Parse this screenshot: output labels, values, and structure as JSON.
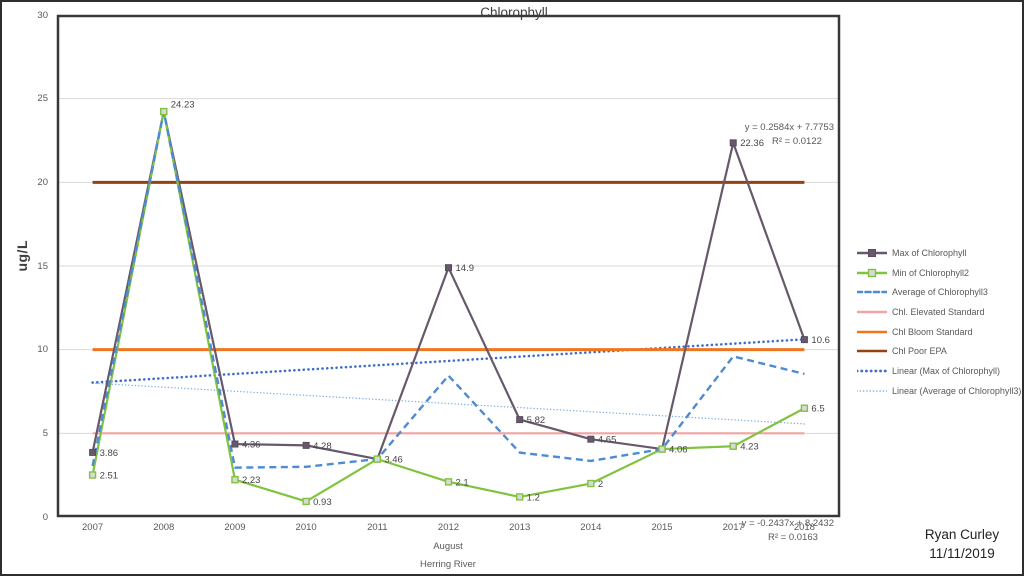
{
  "title": "Chlorophyll",
  "x_axis": {
    "period_label": "August",
    "location_label": "Herring River"
  },
  "annotations": {
    "trend_max": {
      "equation": "y = 0.2584x + 7.7753",
      "r2": "R² = 0.0122"
    },
    "trend_avg": {
      "equation": "y = -0.2437x + 8.2432",
      "r2": "R² = 0.0163"
    }
  },
  "author_block": {
    "name": "Ryan Curley",
    "date": "11/11/2019"
  },
  "chart_data": {
    "type": "line",
    "title": "Chlorophyll",
    "ylabel": "ug/L",
    "ylim": [
      0,
      30
    ],
    "yticks": [
      0,
      5,
      10,
      15,
      20,
      25,
      30
    ],
    "grid": true,
    "legend_position": "right",
    "categories": [
      "2007",
      "2008",
      "2009",
      "2010",
      "2011",
      "2012",
      "2013",
      "2014",
      "2015",
      "2017",
      "2018"
    ],
    "series": [
      {
        "name": "Max of Chlorophyll",
        "kind": "line",
        "style": "solid",
        "marker": "filled-square",
        "color": "#67596B",
        "values": [
          3.86,
          24.23,
          4.36,
          4.28,
          3.46,
          14.9,
          5.82,
          4.65,
          4.06,
          22.36,
          10.6
        ],
        "labels": [
          "3.86",
          null,
          "4.36",
          "4.28",
          "3.46",
          "14.9",
          "5.82",
          "4.65",
          "4.06",
          "22.36",
          "10.6"
        ]
      },
      {
        "name": "Min of Chlorophyll2",
        "kind": "line",
        "style": "solid",
        "marker": "open-square",
        "color": "#80C33E",
        "values": [
          2.51,
          24.23,
          2.23,
          0.93,
          3.46,
          2.1,
          1.2,
          2,
          4.06,
          4.23,
          6.5
        ],
        "labels": [
          "2.51",
          "24.23",
          "2.23",
          "0.93",
          null,
          "2.1",
          "1.2",
          "2",
          null,
          "4.23",
          "6.5"
        ]
      },
      {
        "name": "Average of Chlorophyll3",
        "kind": "line",
        "style": "dashed",
        "color": "#4E8BD3",
        "values": [
          3.05,
          24.23,
          2.95,
          3.0,
          3.46,
          8.45,
          3.85,
          3.35,
          4.06,
          9.6,
          8.55
        ]
      },
      {
        "name": "Chl. Elevated Standard",
        "kind": "constant",
        "style": "solid",
        "color": "#F2A4A0",
        "value": 5
      },
      {
        "name": "Chl Bloom Standard",
        "kind": "constant",
        "style": "solid",
        "color": "#EF7522",
        "value": 10
      },
      {
        "name": "Chl Poor EPA",
        "kind": "constant",
        "style": "solid",
        "color": "#964111",
        "value": 20
      },
      {
        "name": "Linear (Max of Chlorophyll)",
        "kind": "trend",
        "style": "dotted",
        "color": "#3B6DC9",
        "slope": 0.2584,
        "intercept": 7.7753,
        "r2": 0.0122
      },
      {
        "name": "Linear (Average of Chlorophyll3)",
        "kind": "trend",
        "style": "fine-dotted",
        "color": "#7FB0E0",
        "slope": -0.2437,
        "intercept": 8.2432,
        "r2": 0.0163
      }
    ]
  }
}
